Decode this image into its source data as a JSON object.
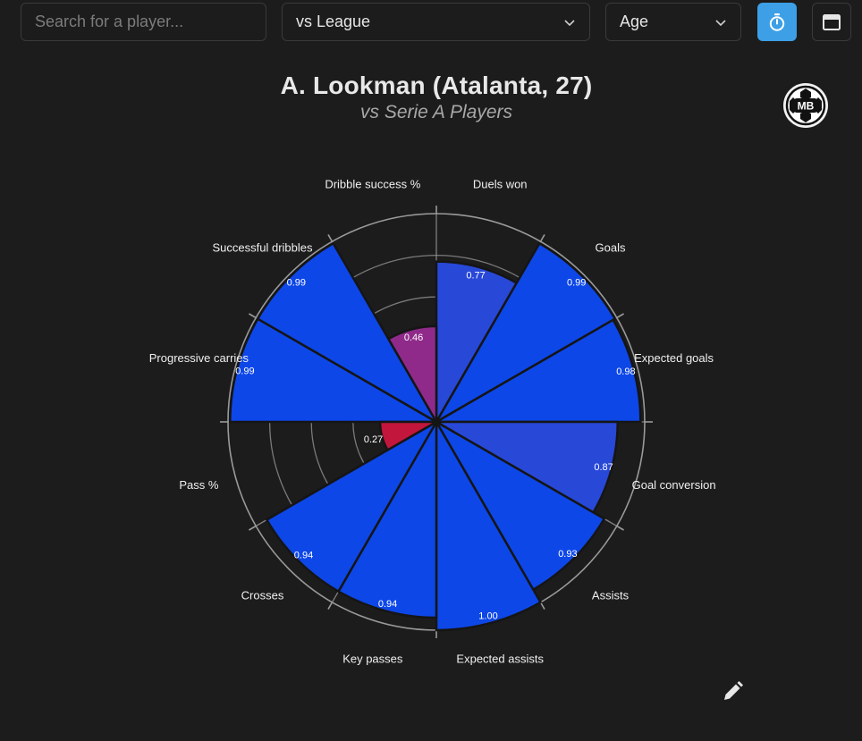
{
  "toolbar": {
    "search_placeholder": "Search for a player...",
    "comparison_value": "vs League",
    "filter_value": "Age",
    "accent_color": "#3d9fe6"
  },
  "icons": {
    "timer": "timer-icon",
    "calendar": "calendar-icon",
    "chevron": "chevron-down-icon",
    "logo": "mb-logo-icon",
    "edit": "pencil-icon"
  },
  "logo": {
    "text": "MB"
  },
  "chart_data": {
    "type": "polar-bar",
    "title": "A. Lookman (Atalanta, 27)",
    "subtitle": "vs Serie A Players",
    "range": [
      0,
      1
    ],
    "grid": true,
    "colors": {
      "high": "#0d47e8",
      "mid": "#2848d8",
      "low_mid": "#8f2a8a",
      "low": "#c3163c"
    },
    "categories": [
      "Duels won",
      "Goals",
      "Expected goals",
      "Goal conversion",
      "Assists",
      "Expected assists",
      "Key passes",
      "Crosses",
      "Pass %",
      "Progressive carries",
      "Successful dribbles",
      "Dribble success %"
    ],
    "values": [
      0.77,
      0.99,
      0.98,
      0.87,
      0.93,
      1.0,
      0.94,
      0.94,
      null,
      0.99,
      0.99,
      0.46
    ],
    "value_labels": [
      "0.77",
      "0.99",
      "0.98",
      "0.87",
      "0.93",
      "1.00",
      "0.94",
      "0.94",
      "",
      "0.99",
      "0.99",
      "0.46"
    ],
    "extra_labels": [
      {
        "text": "0.27",
        "category": "Pass %",
        "value": 0.27
      }
    ]
  }
}
